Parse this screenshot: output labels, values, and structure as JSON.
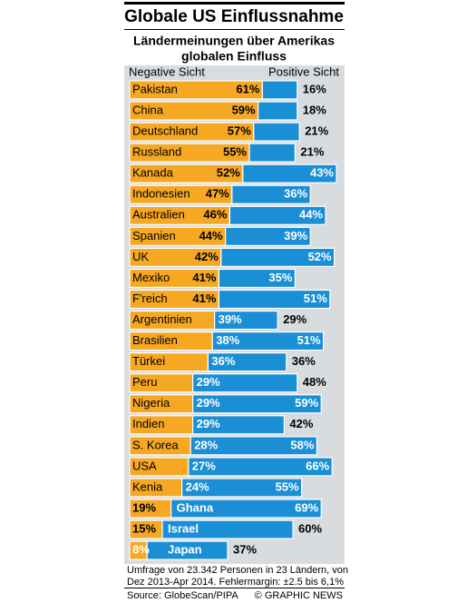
{
  "chart_data": {
    "type": "diverging-bar",
    "title": "Globale US Einflussnahme",
    "subtitle": [
      "Ländermeinungen über Amerikas",
      "globalen Einfluss"
    ],
    "categories": [
      "Pakistan",
      "China",
      "Deutschland",
      "Russland",
      "Kanada",
      "Indonesien",
      "Australien",
      "Spanien",
      "UK",
      "Mexiko",
      "F'reich",
      "Argentinien",
      "Brasilien",
      "Türkei",
      "Peru",
      "Nigeria",
      "Indien",
      "S. Korea",
      "USA",
      "Kenia",
      "Ghana",
      "Israel",
      "Japan"
    ],
    "series": [
      {
        "name": "Negative Sicht",
        "color": "#f7a823",
        "values": [
          61,
          59,
          57,
          55,
          52,
          47,
          46,
          44,
          42,
          41,
          41,
          39,
          38,
          36,
          29,
          29,
          29,
          28,
          27,
          24,
          19,
          15,
          8
        ],
        "value_labels": [
          "61%",
          "59%",
          "57%",
          "55%",
          "52%",
          "47%",
          "46%",
          "44%",
          "42%",
          "41%",
          "41%",
          "39%",
          "38%",
          "36%",
          "29%",
          "29%",
          "29%",
          "28%",
          "27%",
          "24%",
          "19%",
          "15%",
          "8%"
        ]
      },
      {
        "name": "Positive Sicht",
        "color": "#1a8fd6",
        "values": [
          16,
          18,
          21,
          21,
          43,
          36,
          44,
          39,
          52,
          35,
          51,
          29,
          51,
          36,
          48,
          59,
          42,
          58,
          66,
          55,
          69,
          60,
          37
        ],
        "value_labels": [
          "16%",
          "18%",
          "21%",
          "21%",
          "43%",
          "36%",
          "44%",
          "39%",
          "52%",
          "35%",
          "51%",
          "29%",
          "51%",
          "36%",
          "48%",
          "59%",
          "42%",
          "58%",
          "66%",
          "55%",
          "69%",
          "60%",
          "37%"
        ]
      }
    ],
    "footnote": [
      "Umfrage von 23.342 Personen in 23 Ländern, von",
      "Dez 2013-Apr 2014. Fehlermargin: ±2.5 bis 6,1%"
    ],
    "source": "Source: GlobeScan/PIPA",
    "credit": "© GRAPHIC NEWS"
  }
}
